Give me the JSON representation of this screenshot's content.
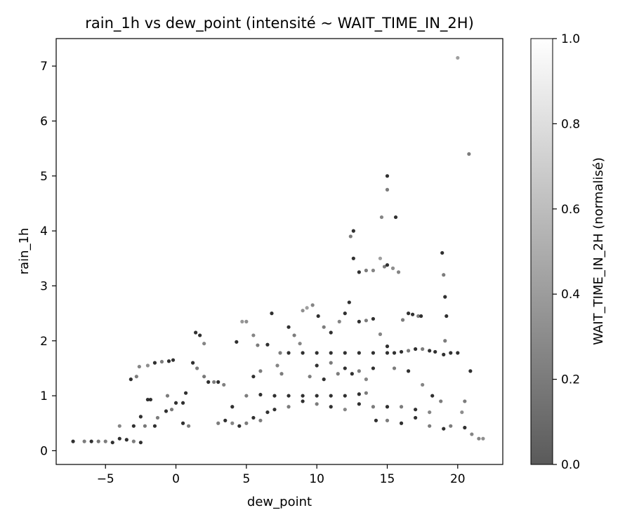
{
  "chart_data": {
    "type": "scatter",
    "title": "rain_1h vs dew_point (intensité ~ WAIT_TIME_IN_2H)",
    "xlabel": "dew_point",
    "ylabel": "rain_1h",
    "xlim": [
      -8.5,
      23.2
    ],
    "ylim": [
      -0.25,
      7.5
    ],
    "xticks": [
      -5,
      0,
      5,
      10,
      15,
      20
    ],
    "xtick_labels": [
      "−5",
      "0",
      "5",
      "10",
      "15",
      "20"
    ],
    "yticks": [
      0,
      1,
      2,
      3,
      4,
      5,
      6,
      7
    ],
    "ytick_labels": [
      "0",
      "1",
      "2",
      "3",
      "4",
      "5",
      "6",
      "7"
    ],
    "grid": false,
    "colorbar": {
      "label": "WAIT_TIME_IN_2H (normalisé)",
      "range": [
        0.0,
        1.0
      ],
      "ticks": [
        0.0,
        0.2,
        0.4,
        0.6,
        0.8,
        1.0
      ],
      "tick_labels": [
        "0.0",
        "0.2",
        "0.4",
        "0.6",
        "0.8",
        "1.0"
      ],
      "colormap": "gray",
      "color_low": "#5a5a5a",
      "color_high": "#ffffff"
    },
    "point_color_dark": "#1a1a1a",
    "point_color_mid": "#555555",
    "series": [
      {
        "points": [
          [
            -7.3,
            0.17,
            0.1
          ],
          [
            -6.5,
            0.17,
            0.2
          ],
          [
            -6.0,
            0.17,
            0.1
          ],
          [
            -5.5,
            0.17,
            0.15
          ],
          [
            -5.0,
            0.17,
            0.2
          ],
          [
            -4.5,
            0.15,
            0.1
          ],
          [
            -4.0,
            0.22,
            0.05
          ],
          [
            -3.5,
            0.2,
            0.1
          ],
          [
            -3.0,
            0.17,
            0.2
          ],
          [
            -2.5,
            0.15,
            0.1
          ],
          [
            -4.0,
            0.45,
            0.3
          ],
          [
            -3.0,
            0.45,
            0.1
          ],
          [
            -2.2,
            0.45,
            0.15
          ],
          [
            -1.5,
            0.45,
            0.1
          ],
          [
            -2.5,
            0.62,
            0.1
          ],
          [
            -2.0,
            0.93,
            0.05
          ],
          [
            -1.8,
            0.93,
            0.1
          ],
          [
            -1.3,
            0.6,
            0.2
          ],
          [
            -0.7,
            0.72,
            0.1
          ],
          [
            -0.3,
            0.75,
            0.15
          ],
          [
            0.0,
            0.87,
            0.1
          ],
          [
            0.5,
            0.87,
            0.1
          ],
          [
            -0.6,
            1.0,
            0.2
          ],
          [
            0.7,
            1.05,
            0.1
          ],
          [
            -3.2,
            1.3,
            0.1
          ],
          [
            -2.8,
            1.35,
            0.2
          ],
          [
            -2.6,
            1.53,
            0.3
          ],
          [
            -2.0,
            1.55,
            0.4
          ],
          [
            -1.5,
            1.6,
            0.1
          ],
          [
            -1.0,
            1.62,
            0.2
          ],
          [
            -0.5,
            1.63,
            0.1
          ],
          [
            -0.2,
            1.65,
            0.05
          ],
          [
            0.5,
            0.5,
            0.1
          ],
          [
            0.9,
            0.45,
            0.2
          ],
          [
            1.4,
            2.15,
            0.1
          ],
          [
            1.7,
            2.1,
            0.05
          ],
          [
            2.0,
            1.95,
            0.3
          ],
          [
            1.5,
            1.5,
            0.2
          ],
          [
            1.2,
            1.6,
            0.1
          ],
          [
            2.0,
            1.35,
            0.15
          ],
          [
            2.3,
            1.25,
            0.1
          ],
          [
            2.7,
            1.25,
            0.2
          ],
          [
            3.0,
            1.25,
            0.1
          ],
          [
            3.4,
            1.2,
            0.25
          ],
          [
            4.3,
            1.98,
            0.1
          ],
          [
            4.7,
            2.35,
            0.5
          ],
          [
            5.0,
            2.35,
            0.4
          ],
          [
            5.5,
            2.1,
            0.3
          ],
          [
            5.8,
            1.92,
            0.2
          ],
          [
            6.5,
            1.93,
            0.1
          ],
          [
            4.0,
            0.8,
            0.1
          ],
          [
            5.0,
            1.0,
            0.2
          ],
          [
            5.5,
            1.35,
            0.1
          ],
          [
            6.0,
            1.45,
            0.2
          ],
          [
            6.8,
            2.5,
            0.1
          ],
          [
            7.2,
            1.55,
            0.3
          ],
          [
            7.5,
            1.4,
            0.2
          ],
          [
            8.0,
            2.25,
            0.1
          ],
          [
            8.4,
            2.1,
            0.2
          ],
          [
            8.8,
            1.95,
            0.3
          ],
          [
            9.3,
            2.6,
            0.6
          ],
          [
            9.0,
            2.55,
            0.4
          ],
          [
            9.7,
            2.65,
            0.3
          ],
          [
            10.1,
            2.45,
            0.1
          ],
          [
            10.5,
            2.25,
            0.2
          ],
          [
            11.0,
            2.15,
            0.1
          ],
          [
            11.6,
            2.35,
            0.3
          ],
          [
            12.0,
            2.5,
            0.1
          ],
          [
            12.3,
            2.7,
            0.05
          ],
          [
            12.6,
            3.5,
            0.1
          ],
          [
            12.6,
            4.0,
            0.05
          ],
          [
            12.4,
            3.9,
            0.2
          ],
          [
            13.0,
            3.25,
            0.1
          ],
          [
            13.5,
            3.28,
            0.2
          ],
          [
            14.0,
            3.28,
            0.3
          ],
          [
            14.5,
            3.5,
            0.6
          ],
          [
            14.8,
            3.35,
            0.2
          ],
          [
            15.0,
            3.38,
            0.1
          ],
          [
            14.6,
            4.25,
            0.3
          ],
          [
            15.0,
            4.75,
            0.2
          ],
          [
            15.0,
            5.0,
            0.05
          ],
          [
            15.6,
            4.25,
            0.1
          ],
          [
            15.4,
            3.32,
            0.4
          ],
          [
            15.8,
            3.25,
            0.3
          ],
          [
            16.1,
            2.38,
            0.2
          ],
          [
            16.5,
            2.5,
            0.1
          ],
          [
            16.8,
            2.48,
            0.1
          ],
          [
            17.2,
            2.45,
            0.2
          ],
          [
            17.4,
            2.45,
            0.05
          ],
          [
            13.0,
            2.35,
            0.1
          ],
          [
            13.5,
            2.37,
            0.2
          ],
          [
            14.0,
            2.4,
            0.1
          ],
          [
            14.5,
            2.12,
            0.3
          ],
          [
            15.0,
            1.9,
            0.1
          ],
          [
            18.9,
            3.6,
            0.1
          ],
          [
            19.0,
            3.2,
            0.2
          ],
          [
            19.1,
            2.8,
            0.05
          ],
          [
            19.2,
            2.45,
            0.1
          ],
          [
            19.1,
            2.0,
            0.2
          ],
          [
            19.0,
            1.75,
            0.1
          ],
          [
            18.4,
            1.8,
            0.05
          ],
          [
            18.0,
            1.82,
            0.1
          ],
          [
            17.5,
            1.85,
            0.2
          ],
          [
            17.0,
            1.85,
            0.1
          ],
          [
            16.5,
            1.82,
            0.2
          ],
          [
            16.0,
            1.8,
            0.1
          ],
          [
            15.5,
            1.78,
            0.05
          ],
          [
            15.0,
            1.78,
            0.1
          ],
          [
            14.0,
            1.78,
            0.1
          ],
          [
            13.0,
            1.78,
            0.05
          ],
          [
            12.0,
            1.78,
            0.1
          ],
          [
            11.0,
            1.78,
            0.1
          ],
          [
            10.0,
            1.78,
            0.05
          ],
          [
            9.0,
            1.78,
            0.1
          ],
          [
            8.0,
            1.78,
            0.1
          ],
          [
            7.4,
            1.78,
            0.2
          ],
          [
            19.5,
            1.78,
            0.1
          ],
          [
            20.0,
            1.78,
            0.05
          ],
          [
            12.0,
            1.0,
            0.05
          ],
          [
            11.0,
            1.0,
            0.1
          ],
          [
            10.0,
            1.0,
            0.05
          ],
          [
            9.0,
            1.0,
            0.1
          ],
          [
            8.0,
            1.0,
            0.1
          ],
          [
            7.0,
            1.0,
            0.05
          ],
          [
            6.0,
            1.02,
            0.1
          ],
          [
            13.0,
            1.03,
            0.1
          ],
          [
            13.5,
            1.05,
            0.2
          ],
          [
            14.2,
            0.55,
            0.1
          ],
          [
            15.0,
            0.55,
            0.2
          ],
          [
            16.0,
            0.5,
            0.1
          ],
          [
            17.0,
            0.6,
            0.1
          ],
          [
            18.0,
            0.45,
            0.2
          ],
          [
            19.0,
            0.4,
            0.1
          ],
          [
            19.5,
            0.45,
            0.2
          ],
          [
            20.5,
            0.42,
            0.1
          ],
          [
            21.0,
            0.3,
            0.3
          ],
          [
            21.5,
            0.22,
            0.3
          ],
          [
            21.8,
            0.22,
            0.4
          ],
          [
            20.0,
            7.15,
            0.6
          ],
          [
            20.8,
            5.4,
            0.2
          ],
          [
            20.9,
            1.45,
            0.1
          ],
          [
            20.5,
            0.9,
            0.2
          ],
          [
            20.3,
            0.7,
            0.4
          ],
          [
            9.5,
            1.35,
            0.2
          ],
          [
            10.5,
            1.3,
            0.1
          ],
          [
            11.5,
            1.4,
            0.2
          ],
          [
            12.5,
            1.4,
            0.1
          ],
          [
            13.5,
            1.3,
            0.3
          ],
          [
            10.0,
            1.55,
            0.1
          ],
          [
            11.0,
            1.6,
            0.2
          ],
          [
            12.0,
            1.5,
            0.1
          ],
          [
            13.0,
            1.45,
            0.2
          ],
          [
            14.0,
            1.5,
            0.1
          ],
          [
            15.5,
            1.5,
            0.2
          ],
          [
            16.5,
            1.45,
            0.1
          ],
          [
            17.5,
            1.2,
            0.3
          ],
          [
            18.2,
            1.0,
            0.1
          ],
          [
            18.8,
            0.9,
            0.2
          ],
          [
            7.0,
            0.75,
            0.1
          ],
          [
            8.0,
            0.8,
            0.2
          ],
          [
            9.0,
            0.9,
            0.1
          ],
          [
            10.0,
            0.85,
            0.2
          ],
          [
            11.0,
            0.8,
            0.1
          ],
          [
            12.0,
            0.75,
            0.3
          ],
          [
            13.0,
            0.85,
            0.1
          ],
          [
            14.0,
            0.8,
            0.2
          ],
          [
            15.0,
            0.8,
            0.1
          ],
          [
            16.0,
            0.8,
            0.2
          ],
          [
            17.0,
            0.75,
            0.1
          ],
          [
            18.0,
            0.7,
            0.3
          ],
          [
            5.5,
            0.6,
            0.1
          ],
          [
            6.0,
            0.55,
            0.2
          ],
          [
            6.5,
            0.7,
            0.1
          ],
          [
            3.0,
            0.5,
            0.2
          ],
          [
            3.5,
            0.55,
            0.1
          ],
          [
            4.0,
            0.5,
            0.3
          ],
          [
            4.5,
            0.45,
            0.1
          ],
          [
            5.0,
            0.5,
            0.2
          ]
        ]
      }
    ]
  }
}
